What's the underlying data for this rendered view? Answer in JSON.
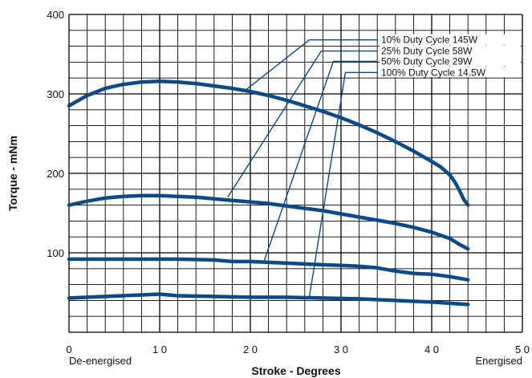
{
  "chart_data": {
    "type": "line",
    "xlabel": "Stroke - Degrees",
    "ylabel": "Torque - mNm",
    "xlim": [
      0,
      50
    ],
    "ylim": [
      0,
      400
    ],
    "x_ticks": [
      "0",
      "1 0",
      "2 0",
      "3 0",
      "4 0",
      "5 0"
    ],
    "y_ticks": [
      "100",
      "200",
      "300",
      "400"
    ],
    "x_start_label": "De-energised",
    "x_end_label": "Energised",
    "grid": true,
    "line_color": "#0a4a86",
    "series": [
      {
        "name": "10% Duty Cycle 145W",
        "x": [
          0,
          2,
          4,
          6,
          8,
          10,
          12,
          14,
          16,
          18,
          20,
          22,
          24,
          26,
          28,
          30,
          32,
          34,
          36,
          38,
          40,
          41,
          42,
          42.5,
          43,
          43.5,
          44
        ],
        "y": [
          285,
          298,
          307,
          312,
          315,
          316,
          315,
          313,
          310,
          307,
          303,
          298,
          292,
          285,
          278,
          270,
          261,
          251,
          240,
          228,
          215,
          208,
          198,
          190,
          180,
          168,
          160
        ]
      },
      {
        "name": "25% Duty Cycle 58W",
        "x": [
          0,
          2,
          4,
          6,
          8,
          10,
          12,
          14,
          16,
          18,
          20,
          22,
          24,
          26,
          28,
          30,
          32,
          34,
          36,
          38,
          40,
          42,
          43,
          44
        ],
        "y": [
          160,
          165,
          169,
          171,
          172,
          172,
          171,
          170,
          168,
          166,
          164,
          162,
          159,
          156,
          153,
          149,
          145,
          141,
          137,
          132,
          126,
          118,
          111,
          105
        ]
      },
      {
        "name": "50% Duty Cycle 29W",
        "x": [
          0,
          4,
          8,
          12,
          16,
          18,
          20,
          22,
          24,
          26,
          28,
          30,
          32,
          34,
          36,
          38,
          40,
          42,
          44
        ],
        "y": [
          92,
          92,
          92,
          92,
          91,
          89,
          89,
          88,
          87,
          86,
          85,
          84,
          83,
          81,
          77,
          74,
          73,
          70,
          66
        ]
      },
      {
        "name": "100% Duty Cycle 14.5W",
        "x": [
          0,
          4,
          8,
          10,
          12,
          16,
          20,
          24,
          28,
          32,
          36,
          40,
          44
        ],
        "y": [
          43,
          45,
          47,
          48,
          46,
          45,
          44,
          44,
          43,
          42,
          40,
          38,
          35
        ]
      }
    ],
    "callouts": [
      {
        "series": 0,
        "tip": [
          19.5,
          305
        ],
        "label_y": 368
      },
      {
        "series": 1,
        "tip": [
          17.5,
          170
        ],
        "label_y": 354
      },
      {
        "series": 2,
        "tip": [
          21.5,
          89
        ],
        "label_y": 341
      },
      {
        "series": 3,
        "tip": [
          26.5,
          44
        ],
        "label_y": 327
      }
    ]
  }
}
